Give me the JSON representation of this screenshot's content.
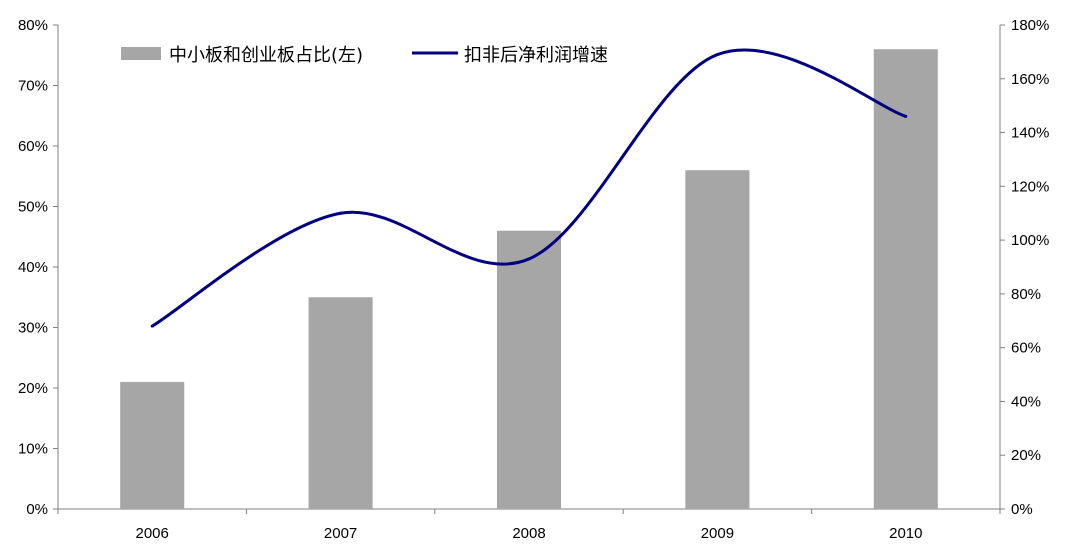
{
  "chart_data": {
    "type": "bar+line",
    "categories": [
      "2006",
      "2007",
      "2008",
      "2009",
      "2010"
    ],
    "series": [
      {
        "name": "中小板和创业板占比(左)",
        "type": "bar",
        "axis": "left",
        "color": "#a6a6a6",
        "values": [
          21,
          35,
          46,
          56,
          76
        ]
      },
      {
        "name": "扣非后净利润增速",
        "type": "line",
        "axis": "right",
        "color": "#000080",
        "values": [
          68,
          110,
          93,
          169,
          146
        ]
      }
    ],
    "left_axis": {
      "min": 0,
      "max": 80,
      "step": 10,
      "ticks": [
        "0%",
        "10%",
        "20%",
        "30%",
        "40%",
        "50%",
        "60%",
        "70%",
        "80%"
      ]
    },
    "right_axis": {
      "min": 0,
      "max": 180,
      "step": 20,
      "ticks": [
        "0%",
        "20%",
        "40%",
        "60%",
        "80%",
        "100%",
        "120%",
        "140%",
        "160%",
        "180%"
      ]
    },
    "grid": false,
    "legend_position": "top-left",
    "title": "",
    "xlabel": "",
    "ylabel": ""
  }
}
